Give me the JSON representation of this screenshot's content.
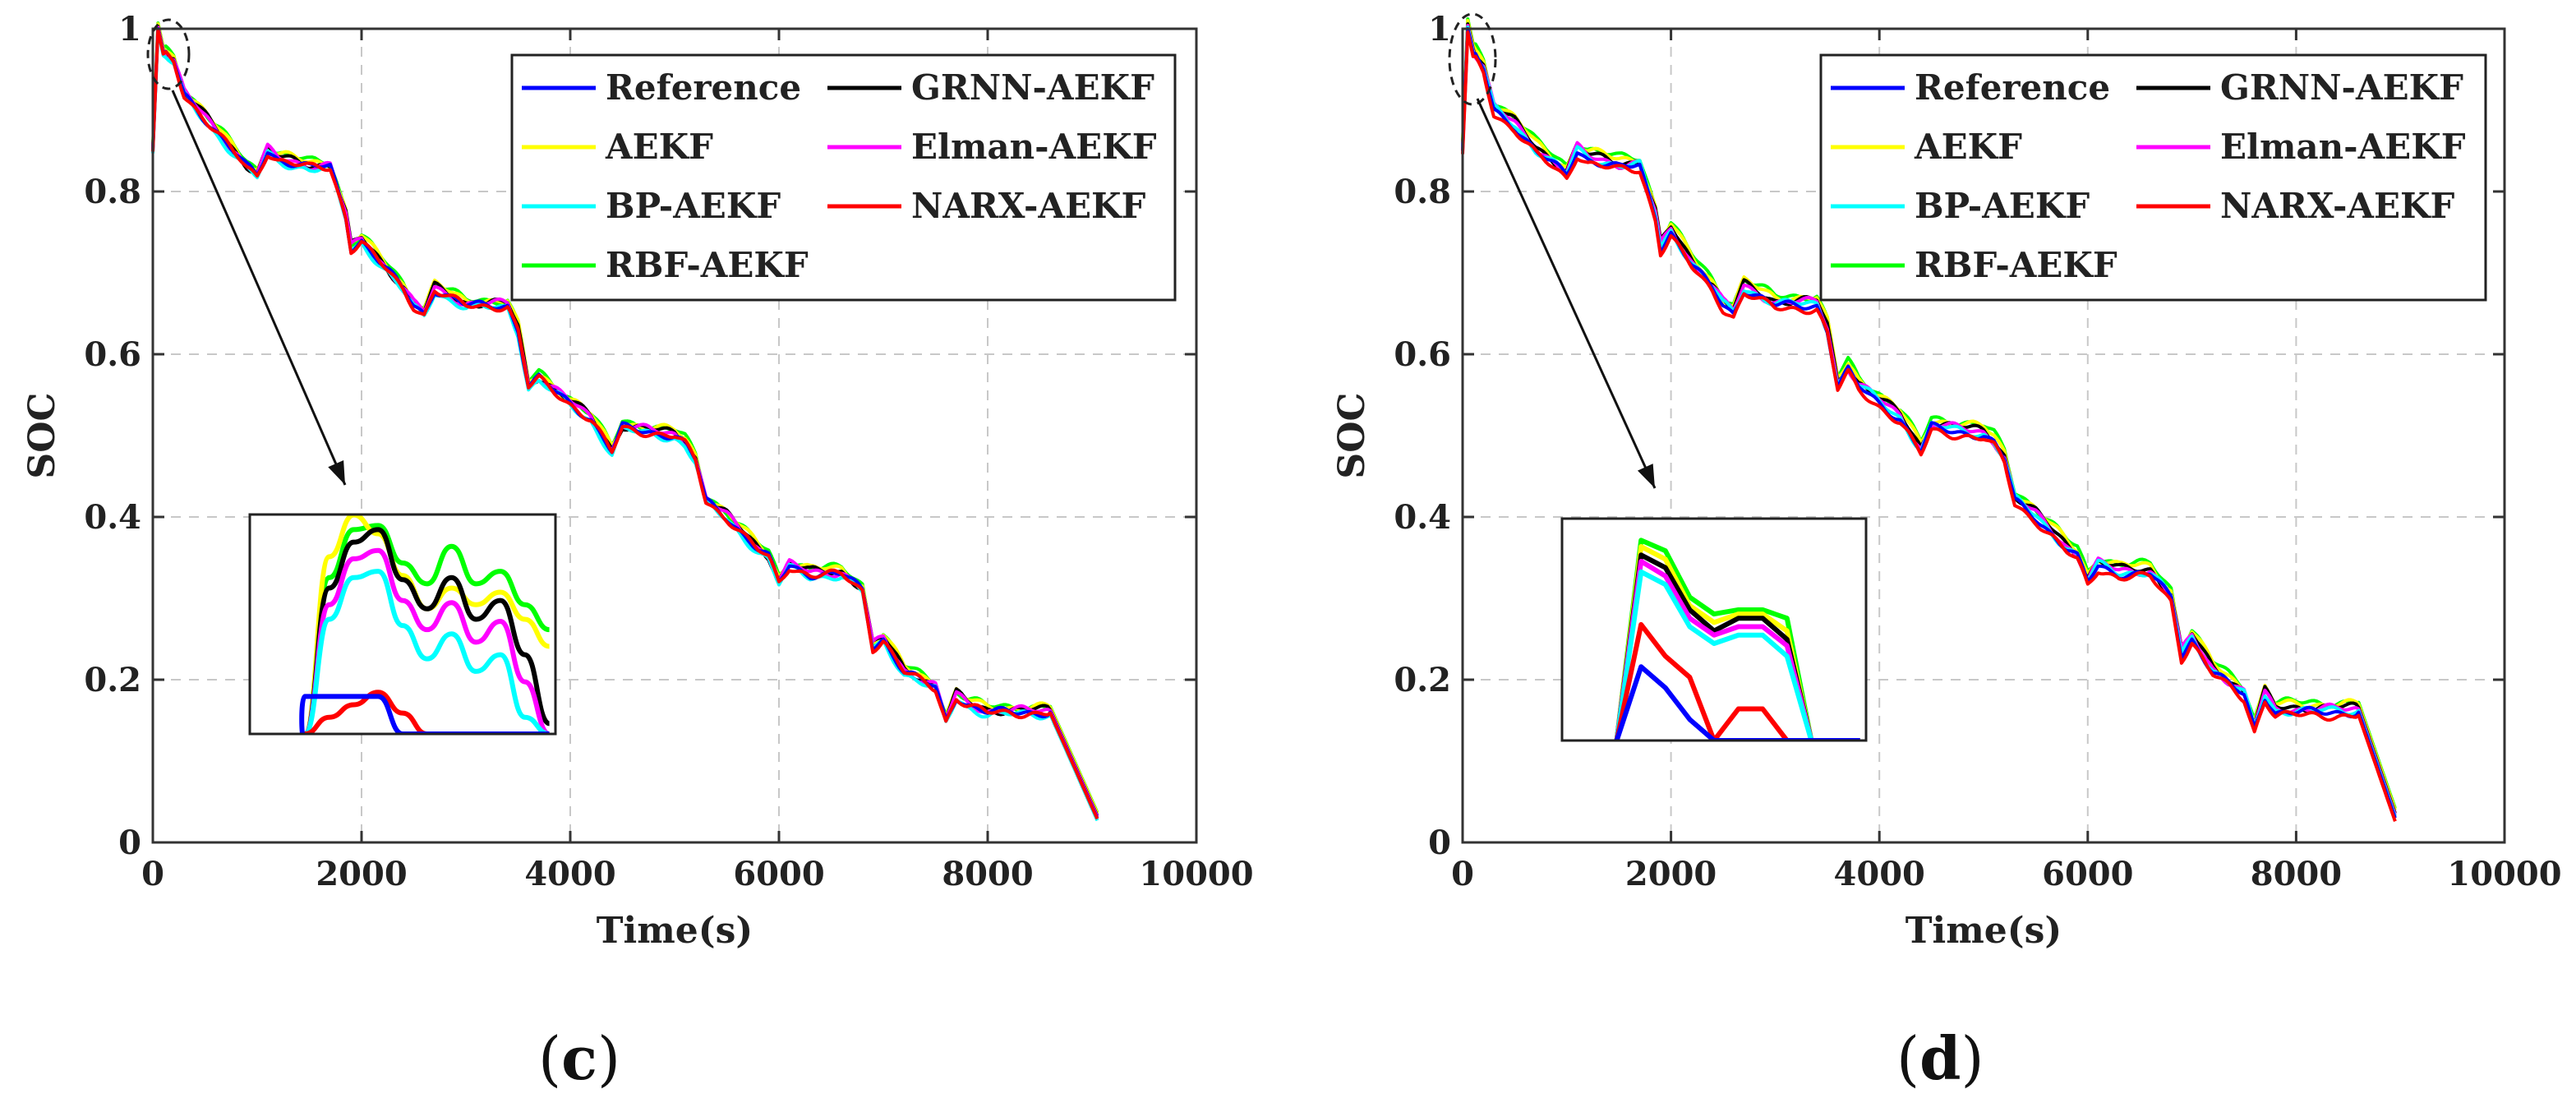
{
  "chart_data": [
    {
      "type": "line",
      "panel_label": "c",
      "xlabel": "Time(s)",
      "ylabel": "SOC",
      "xlim": [
        0,
        10000
      ],
      "ylim": [
        0,
        1
      ],
      "xticks": [
        "0",
        "2000",
        "4000",
        "6000",
        "8000",
        "10000"
      ],
      "yticks": [
        "0",
        "0.2",
        "0.4",
        "0.6",
        "0.8",
        "1"
      ],
      "grid": true,
      "legend_position": "top-right",
      "x": [
        0,
        50,
        100,
        200,
        300,
        500,
        700,
        900,
        1000,
        1100,
        1200,
        1500,
        1700,
        1800,
        1850,
        1900,
        2000,
        2200,
        2400,
        2500,
        2600,
        2700,
        3000,
        3400,
        3500,
        3600,
        3700,
        3800,
        4000,
        4200,
        4300,
        4400,
        4500,
        5000,
        5100,
        5200,
        5300,
        5500,
        5800,
        5900,
        6000,
        6100,
        6300,
        6600,
        6800,
        6900,
        7000,
        7200,
        7500,
        7600,
        7700,
        7800,
        8000,
        8300,
        8600,
        9050
      ],
      "series": [
        {
          "name": "Reference",
          "color": "#0000ff",
          "offset": 0
        },
        {
          "name": "GRNN-AEKF",
          "color": "#000000",
          "offset": 0.003
        },
        {
          "name": "AEKF",
          "color": "#ffff00",
          "offset": 0.006
        },
        {
          "name": "Elman-AEKF",
          "color": "#ff00ff",
          "offset": 0.002
        },
        {
          "name": "BP-AEKF",
          "color": "#00ffff",
          "offset": -0.003
        },
        {
          "name": "NARX-AEKF",
          "color": "#ff0000",
          "offset": -0.001
        },
        {
          "name": "RBF-AEKF",
          "color": "#00ff00",
          "offset": 0.007
        }
      ],
      "base_values": [
        0.85,
        1.0,
        0.97,
        0.96,
        0.92,
        0.89,
        0.86,
        0.83,
        0.82,
        0.85,
        0.84,
        0.83,
        0.83,
        0.79,
        0.77,
        0.73,
        0.74,
        0.71,
        0.68,
        0.66,
        0.65,
        0.68,
        0.66,
        0.66,
        0.63,
        0.56,
        0.57,
        0.56,
        0.54,
        0.52,
        0.5,
        0.48,
        0.51,
        0.5,
        0.49,
        0.47,
        0.42,
        0.4,
        0.36,
        0.35,
        0.32,
        0.34,
        0.33,
        0.33,
        0.31,
        0.24,
        0.25,
        0.21,
        0.19,
        0.15,
        0.18,
        0.17,
        0.16,
        0.16,
        0.16,
        0.03
      ],
      "inset": {
        "note": "zoomed detail of initial transient",
        "series": [
          {
            "name": "RBF-AEKF",
            "color": "#00ff00",
            "values": [
              0.0,
              0.75,
              0.98,
              1.0,
              0.82,
              0.72,
              0.9,
              0.72,
              0.78,
              0.62,
              0.5
            ]
          },
          {
            "name": "AEKF",
            "color": "#ffff00",
            "values": [
              0.0,
              0.85,
              1.05,
              0.96,
              0.76,
              0.6,
              0.7,
              0.62,
              0.68,
              0.55,
              0.42
            ]
          },
          {
            "name": "GRNN-AEKF",
            "color": "#000000",
            "values": [
              0.0,
              0.7,
              0.92,
              0.98,
              0.74,
              0.6,
              0.75,
              0.55,
              0.64,
              0.38,
              0.05
            ]
          },
          {
            "name": "Elman-AEKF",
            "color": "#ff00ff",
            "values": [
              0.0,
              0.62,
              0.84,
              0.88,
              0.64,
              0.5,
              0.63,
              0.44,
              0.54,
              0.25,
              0.0
            ]
          },
          {
            "name": "BP-AEKF",
            "color": "#00ffff",
            "values": [
              0.0,
              0.55,
              0.75,
              0.78,
              0.52,
              0.36,
              0.48,
              0.3,
              0.38,
              0.08,
              0.0
            ]
          },
          {
            "name": "NARX-AEKF",
            "color": "#ff0000",
            "values": [
              0.0,
              0.08,
              0.14,
              0.2,
              0.1,
              0.0,
              0.0,
              0.0,
              0.0,
              0.0,
              0.0
            ]
          },
          {
            "name": "Reference",
            "color": "#0000ff",
            "values": [
              0.18,
              0.18,
              0.18,
              0.18,
              0.0,
              0.0,
              0.0,
              0.0,
              0.0,
              0.0,
              0.0
            ]
          }
        ]
      }
    },
    {
      "type": "line",
      "panel_label": "d",
      "xlabel": "Time(s)",
      "ylabel": "SOC",
      "xlim": [
        0,
        10000
      ],
      "ylim": [
        0,
        1
      ],
      "xticks": [
        "0",
        "2000",
        "4000",
        "6000",
        "8000",
        "10000"
      ],
      "yticks": [
        "0",
        "0.2",
        "0.4",
        "0.6",
        "0.8",
        "1"
      ],
      "grid": true,
      "legend_position": "top-right",
      "x": [
        0,
        50,
        100,
        200,
        300,
        500,
        700,
        900,
        1000,
        1100,
        1200,
        1500,
        1700,
        1800,
        1850,
        1900,
        2000,
        2200,
        2400,
        2500,
        2600,
        2700,
        3000,
        3400,
        3500,
        3600,
        3700,
        3800,
        4000,
        4200,
        4300,
        4400,
        4500,
        5000,
        5100,
        5200,
        5300,
        5500,
        5800,
        5900,
        6000,
        6100,
        6300,
        6600,
        6800,
        6900,
        7000,
        7200,
        7500,
        7600,
        7700,
        7800,
        8000,
        8300,
        8600,
        8950
      ],
      "series": [
        {
          "name": "Reference",
          "color": "#0000ff",
          "offset": 0
        },
        {
          "name": "GRNN-AEKF",
          "color": "#000000",
          "offset": 0.006
        },
        {
          "name": "AEKF",
          "color": "#ffff00",
          "offset": 0.01
        },
        {
          "name": "Elman-AEKF",
          "color": "#ff00ff",
          "offset": 0.004
        },
        {
          "name": "BP-AEKF",
          "color": "#00ffff",
          "offset": 0.002
        },
        {
          "name": "NARX-AEKF",
          "color": "#ff0000",
          "offset": -0.004
        },
        {
          "name": "RBF-AEKF",
          "color": "#00ff00",
          "offset": 0.012
        }
      ],
      "base_values": [
        0.85,
        1.0,
        0.97,
        0.95,
        0.9,
        0.88,
        0.85,
        0.83,
        0.82,
        0.85,
        0.84,
        0.83,
        0.83,
        0.79,
        0.77,
        0.73,
        0.75,
        0.71,
        0.68,
        0.66,
        0.65,
        0.68,
        0.66,
        0.66,
        0.63,
        0.56,
        0.58,
        0.56,
        0.54,
        0.52,
        0.5,
        0.48,
        0.51,
        0.5,
        0.49,
        0.47,
        0.42,
        0.4,
        0.36,
        0.35,
        0.32,
        0.34,
        0.33,
        0.33,
        0.3,
        0.23,
        0.25,
        0.21,
        0.18,
        0.14,
        0.18,
        0.16,
        0.16,
        0.16,
        0.16,
        0.03
      ],
      "inset": {
        "note": "zoomed detail of initial transient",
        "series": [
          {
            "name": "RBF-AEKF",
            "color": "#00ff00",
            "values": [
              0.0,
              0.95,
              0.9,
              0.68,
              0.6,
              0.62,
              0.62,
              0.58,
              0.0,
              0.0,
              0.0
            ]
          },
          {
            "name": "AEKF",
            "color": "#ffff00",
            "values": [
              0.0,
              0.92,
              0.86,
              0.64,
              0.56,
              0.6,
              0.6,
              0.52,
              0.0,
              0.0,
              0.0
            ]
          },
          {
            "name": "GRNN-AEKF",
            "color": "#000000",
            "values": [
              0.0,
              0.88,
              0.82,
              0.62,
              0.52,
              0.58,
              0.58,
              0.48,
              0.0,
              0.0,
              0.0
            ]
          },
          {
            "name": "Elman-AEKF",
            "color": "#ff00ff",
            "values": [
              0.0,
              0.85,
              0.78,
              0.58,
              0.5,
              0.54,
              0.54,
              0.45,
              0.0,
              0.0,
              0.0
            ]
          },
          {
            "name": "BP-AEKF",
            "color": "#00ffff",
            "values": [
              0.0,
              0.8,
              0.74,
              0.54,
              0.46,
              0.5,
              0.5,
              0.4,
              0.0,
              0.0,
              0.0
            ]
          },
          {
            "name": "NARX-AEKF",
            "color": "#ff0000",
            "values": [
              0.0,
              0.55,
              0.4,
              0.3,
              0.0,
              0.15,
              0.15,
              0.0,
              0.0,
              0.0,
              0.0
            ]
          },
          {
            "name": "Reference",
            "color": "#0000ff",
            "values": [
              0.0,
              0.35,
              0.25,
              0.1,
              0.0,
              0.0,
              0.0,
              0.0,
              0.0,
              0.0,
              0.0
            ]
          }
        ]
      }
    }
  ]
}
